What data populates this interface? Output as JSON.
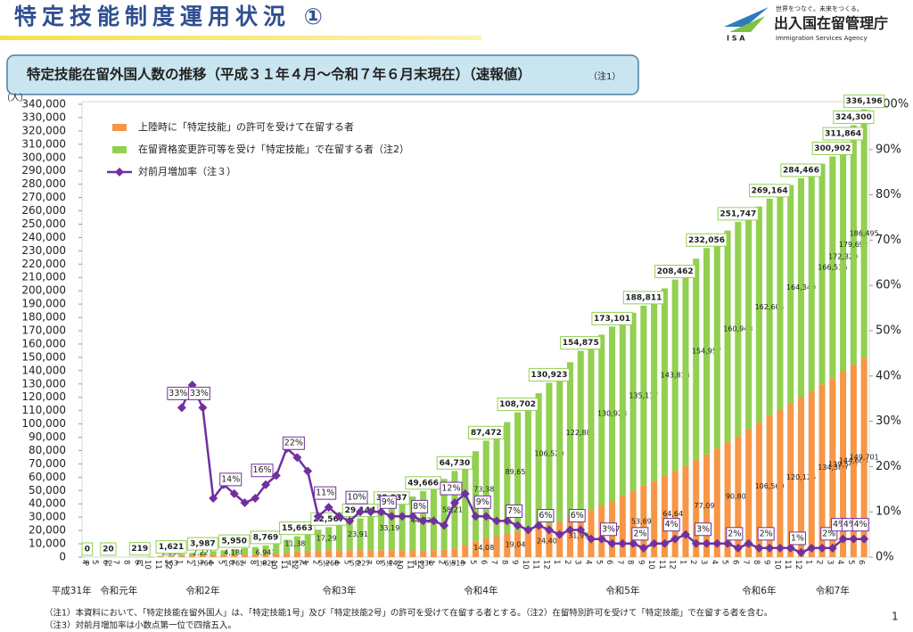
{
  "header": {
    "title": "特定技能制度運用状況 ①",
    "subtitle": "特定技能在留外国人数の推移（平成３１年４月～令和７年６月末現在）（速報値）",
    "note_ref": "（注1）",
    "logo_tagline": "世界をつなぐ。未来をつくる。",
    "logo_name": "出入国在留管理庁",
    "logo_english": "Immigration Services Agency",
    "logo_abbr": "I S A"
  },
  "footnotes": [
    "（注1）本資料において、「特定技能在留外国人」は、「特定技能1号」及び「特定技能2号」の許可を受けて在留する者とする。（注2）在留特別許可を受けて「特定技能」で在留する者を含む。",
    "（注3）対前月増加率は小数点第一位で四捨五入。"
  ],
  "page_number": "1",
  "chart_data": {
    "type": "bar",
    "stacked": true,
    "y_unit": "（人）",
    "categories": [
      "4",
      "5",
      "6",
      "7",
      "8",
      "9",
      "10",
      "11",
      "12",
      "1",
      "2",
      "3",
      "4",
      "5",
      "6",
      "7",
      "8",
      "9",
      "10",
      "11",
      "12",
      "1",
      "2",
      "3",
      "4",
      "5",
      "6",
      "7",
      "8",
      "9",
      "10",
      "11",
      "12",
      "1",
      "2",
      "3",
      "4",
      "5",
      "6",
      "7",
      "8",
      "9",
      "10",
      "11",
      "12",
      "1",
      "2",
      "3",
      "4",
      "5",
      "6",
      "7",
      "8",
      "9",
      "10",
      "11",
      "12",
      "1",
      "2",
      "3",
      "4",
      "5",
      "6",
      "7",
      "8",
      "9",
      "10",
      "11",
      "12",
      "1",
      "2",
      "3",
      "4",
      "5",
      "6"
    ],
    "year_labels": [
      "平成31年",
      "令和元年",
      "令和2年",
      "令和3年",
      "令和4年",
      "令和5年",
      "令和6年",
      "令和7年"
    ],
    "series": [
      {
        "name": "上陸時に「特定技能」の許可を受けて在留する者",
        "color": "#f79646",
        "values": [
          0,
          4,
          12,
          30,
          50,
          71,
          180,
          360,
          563,
          900,
          1400,
          1766,
          1700,
          1750,
          1762,
          1780,
          1800,
          1826,
          2400,
          3300,
          4274,
          4800,
          5100,
          5268,
          5250,
          5240,
          5227,
          5200,
          5170,
          5142,
          5080,
          5000,
          4936,
          5300,
          5900,
          6513,
          9000,
          11500,
          14088,
          15800,
          17400,
          19049,
          20800,
          22600,
          24403,
          26800,
          29400,
          31994,
          35400,
          38800,
          42173,
          45900,
          49800,
          53694,
          57300,
          60900,
          64649,
          68700,
          72900,
          77099,
          81600,
          86200,
          90804,
          96000,
          101300,
          106560,
          111000,
          115600,
          120126,
          124800,
          129600,
          134386,
          139544,
          144608,
          149701
        ],
        "value_labels": [
          "0",
          null,
          "12",
          null,
          null,
          "71",
          null,
          null,
          "563",
          null,
          null,
          "1,766",
          null,
          null,
          "1,762",
          null,
          null,
          "1,826",
          null,
          null,
          "4,274",
          null,
          null,
          "5,268",
          null,
          null,
          "5,227",
          null,
          null,
          "5,142",
          null,
          null,
          "4,936",
          null,
          null,
          "6,513",
          null,
          null,
          "14,088",
          null,
          null,
          "19,049",
          null,
          null,
          "24,403",
          null,
          null,
          "31,994",
          null,
          null,
          "42,173",
          null,
          null,
          "53,694",
          null,
          null,
          "64,649",
          null,
          null,
          "77,099",
          null,
          null,
          "90,804",
          null,
          null,
          "106,560",
          null,
          null,
          "120,126",
          null,
          null,
          "134,386",
          "139,544",
          "144,608",
          "149,701"
        ]
      },
      {
        "name": "在留資格変更許可等を受け「特定技能」で在留する者（注2）",
        "color": "#92d050",
        "values": [
          0,
          3,
          8,
          40,
          90,
          148,
          340,
          650,
          1058,
          1400,
          1800,
          2221,
          2800,
          3450,
          4188,
          4900,
          5800,
          6943,
          8000,
          9700,
          11389,
          13300,
          15500,
          17299,
          19300,
          21400,
          23917,
          27000,
          30000,
          33195,
          36800,
          40500,
          44730,
          48800,
          52800,
          58217,
          63000,
          68000,
          73384,
          79000,
          84000,
          89653,
          95000,
          100500,
          106520,
          111500,
          117000,
          122881,
          125500,
          128200,
          130928,
          132300,
          133700,
          135117,
          138000,
          140900,
          143813,
          147500,
          151200,
          154957,
          157000,
          159000,
          160943,
          161500,
          162000,
          162604,
          163200,
          163800,
          164340,
          165000,
          165800,
          166516,
          172320,
          179692,
          186495
        ],
        "value_labels": [
          null,
          null,
          "8",
          null,
          null,
          "148",
          null,
          null,
          "1,058",
          null,
          null,
          "2,221",
          null,
          null,
          "4,188",
          null,
          null,
          "6,943",
          null,
          null,
          "11,389",
          null,
          null,
          "17,299",
          null,
          null,
          "23,917",
          null,
          null,
          "33,195",
          null,
          null,
          "44,730",
          null,
          null,
          "58,217",
          null,
          null,
          "73,384",
          null,
          null,
          "89,653",
          null,
          null,
          "106,520",
          null,
          null,
          "122,881",
          null,
          null,
          "130,928",
          null,
          null,
          "135,117",
          null,
          null,
          "143,813",
          null,
          null,
          "154,957",
          null,
          null,
          "160,943",
          null,
          null,
          "162,604",
          null,
          null,
          "164,340",
          null,
          null,
          "166,516",
          "172,320",
          "179,692",
          "186,495"
        ]
      },
      {
        "name": "対前月増加率（注３）",
        "color": "#7030a0",
        "type": "line",
        "axis": "y2",
        "values": [
          null,
          null,
          null,
          null,
          null,
          null,
          null,
          null,
          null,
          33,
          38,
          33,
          13,
          16,
          14,
          12,
          13,
          16,
          18,
          24,
          22,
          19,
          9,
          11,
          9,
          8,
          10,
          10,
          10,
          9,
          9,
          9,
          8,
          8,
          7,
          12,
          14,
          9,
          9,
          8,
          8,
          7,
          6,
          7,
          6,
          5,
          6,
          6,
          4,
          4,
          3,
          3,
          3,
          2,
          3,
          3,
          4,
          5,
          3,
          3,
          3,
          3,
          2,
          3,
          2,
          2,
          2,
          2,
          1,
          2,
          2,
          2,
          4,
          4,
          4
        ],
        "value_labels": [
          null,
          null,
          null,
          null,
          null,
          null,
          null,
          null,
          null,
          "33%",
          null,
          "33%",
          null,
          null,
          "14%",
          null,
          null,
          "16%",
          null,
          null,
          "22%",
          null,
          null,
          "11%",
          null,
          null,
          "10%",
          null,
          null,
          "9%",
          null,
          null,
          "8%",
          null,
          null,
          "12%",
          null,
          null,
          "9%",
          null,
          null,
          "7%",
          null,
          null,
          "6%",
          null,
          null,
          "6%",
          null,
          null,
          "3%",
          null,
          null,
          "2%",
          null,
          null,
          "4%",
          null,
          null,
          "3%",
          null,
          null,
          "2%",
          null,
          null,
          "2%",
          null,
          null,
          "1%",
          null,
          null,
          "2%",
          "4%",
          "4%",
          "4%"
        ]
      }
    ],
    "totals": {
      "values": [
        0,
        null,
        20,
        null,
        null,
        219,
        null,
        null,
        1621,
        null,
        null,
        3987,
        null,
        null,
        5950,
        null,
        null,
        8769,
        null,
        null,
        15663,
        null,
        null,
        22567,
        null,
        null,
        29144,
        null,
        null,
        38337,
        null,
        null,
        49666,
        null,
        null,
        64730,
        null,
        null,
        87472,
        null,
        null,
        108702,
        null,
        null,
        130923,
        null,
        null,
        154875,
        null,
        null,
        173101,
        null,
        null,
        188811,
        null,
        null,
        208462,
        null,
        null,
        232056,
        null,
        null,
        251747,
        null,
        null,
        269164,
        null,
        null,
        284466,
        null,
        null,
        300902,
        311864,
        324300,
        336196
      ],
      "value_labels": [
        "0",
        null,
        "20",
        null,
        null,
        "219",
        null,
        null,
        "1,621",
        null,
        null,
        "3,987",
        null,
        null,
        "5,950",
        null,
        null,
        "8,769",
        null,
        null,
        "15,663",
        null,
        null,
        "22,567",
        null,
        null,
        "29,144",
        null,
        null,
        "38,337",
        null,
        null,
        "49,666",
        null,
        null,
        "64,730",
        null,
        null,
        "87,472",
        null,
        null,
        "108,702",
        null,
        null,
        "130,923",
        null,
        null,
        "154,875",
        null,
        null,
        "173,101",
        null,
        null,
        "188,811",
        null,
        null,
        "208,462",
        null,
        null,
        "232,056",
        null,
        null,
        "251,747",
        null,
        null,
        "269,164",
        null,
        null,
        "284,466",
        null,
        null,
        "300,902",
        "311,864",
        "324,300",
        "336,196"
      ]
    },
    "ylim": [
      0,
      340000
    ],
    "yticks": [
      0,
      {
        "value": 10000,
        "label": "10,000"
      },
      {
        "value": 20000,
        "label": "20,000"
      },
      {
        "value": 30000,
        "label": "30,000"
      },
      {
        "value": 40000,
        "label": "40,000"
      },
      {
        "value": 50000,
        "label": "50,000"
      },
      {
        "value": 60000,
        "label": "60,000"
      },
      {
        "value": 70000,
        "label": "70,000"
      },
      {
        "value": 80000,
        "label": "80,000"
      },
      {
        "value": 90000,
        "label": "90,000"
      },
      {
        "value": 100000,
        "label": "100,000"
      },
      {
        "value": 110000,
        "label": "110,000"
      },
      {
        "value": 120000,
        "label": "120,000"
      },
      {
        "value": 130000,
        "label": "130,000"
      },
      {
        "value": 140000,
        "label": "140,000"
      },
      {
        "value": 150000,
        "label": "150,000"
      },
      {
        "value": 160000,
        "label": "160,000"
      },
      {
        "value": 170000,
        "label": "170,000"
      },
      {
        "value": 180000,
        "label": "180,000"
      },
      {
        "value": 190000,
        "label": "190,000"
      },
      {
        "value": 200000,
        "label": "200,000"
      },
      {
        "value": 210000,
        "label": "210,000"
      },
      {
        "value": 220000,
        "label": "220,000"
      },
      {
        "value": 230000,
        "label": "230,000"
      },
      {
        "value": 240000,
        "label": "240,000"
      },
      {
        "value": 250000,
        "label": "250,000"
      },
      {
        "value": 260000,
        "label": "260,000"
      },
      {
        "value": 270000,
        "label": "270,000"
      },
      {
        "value": 280000,
        "label": "280,000"
      },
      {
        "value": 290000,
        "label": "290,000"
      },
      {
        "value": 300000,
        "label": "300,000"
      },
      {
        "value": 310000,
        "label": "310,000"
      },
      {
        "value": 320000,
        "label": "320,000"
      },
      {
        "value": 330000,
        "label": "330,000"
      },
      {
        "value": 340000,
        "label": "340,000"
      }
    ],
    "y2lim": [
      0,
      100
    ],
    "y2ticks": [
      {
        "value": 0,
        "label": "0%"
      },
      {
        "value": 10,
        "label": "10%"
      },
      {
        "value": 20,
        "label": "20%"
      },
      {
        "value": 30,
        "label": "30%"
      },
      {
        "value": 40,
        "label": "40%"
      },
      {
        "value": 50,
        "label": "50%"
      },
      {
        "value": 60,
        "label": "60%"
      },
      {
        "value": 70,
        "label": "70%"
      },
      {
        "value": 80,
        "label": "80%"
      },
      {
        "value": 90,
        "label": "90%"
      },
      {
        "value": 100,
        "label": "100%"
      }
    ],
    "legend": "upper left"
  }
}
